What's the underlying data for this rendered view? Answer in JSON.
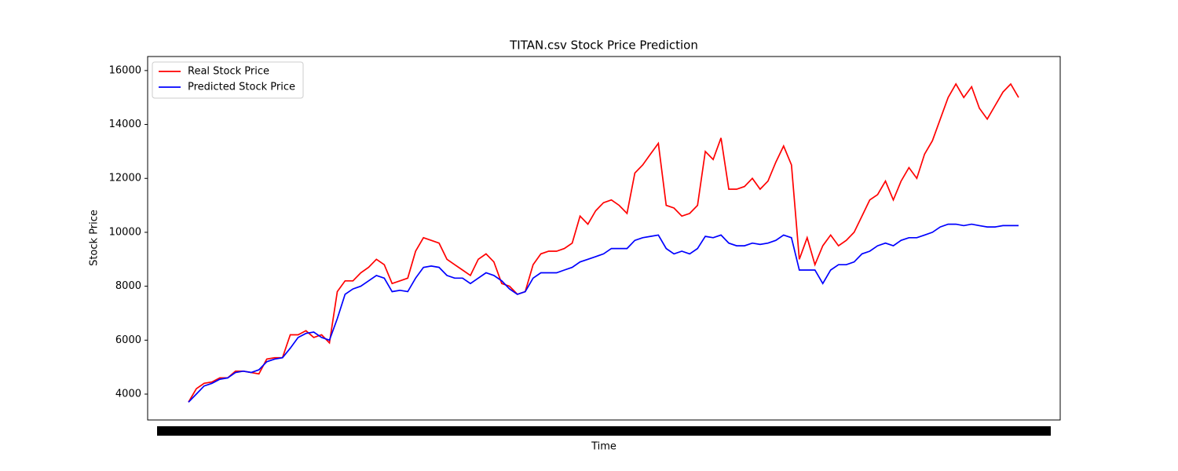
{
  "chart_data": {
    "type": "line",
    "title": "TITAN.csv Stock Price Prediction",
    "x_label": "Time",
    "y_label": "Stock Price",
    "ylim": [
      3040,
      16520
    ],
    "yticks": [
      4000,
      6000,
      8000,
      10000,
      12000,
      14000,
      16000
    ],
    "legend": "upper left",
    "series": [
      {
        "name": "Real Stock Price",
        "color": "#ff0000",
        "values": [
          3700,
          4200,
          4400,
          4450,
          4600,
          4600,
          4850,
          4850,
          4800,
          4750,
          5300,
          5350,
          5350,
          6200,
          6200,
          6350,
          6100,
          6200,
          5900,
          7800,
          8200,
          8200,
          8500,
          8700,
          9000,
          8800,
          8100,
          8200,
          8300,
          9300,
          9800,
          9700,
          9600,
          9000,
          8800,
          8600,
          8400,
          9000,
          9200,
          8900,
          8100,
          8000,
          7700,
          7800,
          8800,
          9200,
          9300,
          9300,
          9400,
          9600,
          10600,
          10300,
          10800,
          11100,
          11200,
          11000,
          10700,
          12200,
          12500,
          12900,
          13300,
          11000,
          10900,
          10600,
          10700,
          11000,
          13000,
          12700,
          13500,
          11600,
          11600,
          11700,
          12000,
          11600,
          11900,
          12600,
          13200,
          12500,
          9000,
          9800,
          8800,
          9500,
          9900,
          9500,
          9700,
          10000,
          10600,
          11200,
          11400,
          11900,
          11200,
          11900,
          12400,
          12000,
          12900,
          13400,
          14200,
          15000,
          15500,
          15000,
          15400,
          14600,
          14200,
          14700,
          15200,
          15500,
          15000
        ]
      },
      {
        "name": "Predicted Stock Price",
        "color": "#0000ff",
        "values": [
          3700,
          4000,
          4300,
          4400,
          4550,
          4600,
          4800,
          4850,
          4800,
          4900,
          5200,
          5300,
          5350,
          5700,
          6100,
          6250,
          6300,
          6100,
          6000,
          6800,
          7700,
          7900,
          8000,
          8200,
          8400,
          8300,
          7800,
          7850,
          7800,
          8300,
          8700,
          8750,
          8700,
          8400,
          8300,
          8300,
          8100,
          8300,
          8500,
          8400,
          8200,
          7900,
          7700,
          7800,
          8300,
          8500,
          8500,
          8500,
          8600,
          8700,
          8900,
          9000,
          9100,
          9200,
          9400,
          9400,
          9400,
          9700,
          9800,
          9850,
          9900,
          9400,
          9200,
          9300,
          9200,
          9400,
          9850,
          9800,
          9900,
          9600,
          9500,
          9500,
          9600,
          9550,
          9600,
          9700,
          9900,
          9800,
          8600,
          8600,
          8600,
          8100,
          8600,
          8800,
          8800,
          8900,
          9200,
          9300,
          9500,
          9600,
          9500,
          9700,
          9800,
          9800,
          9900,
          10000,
          10200,
          10300,
          10300,
          10250,
          10300,
          10250,
          10200,
          10200,
          10250,
          10250,
          10250
        ]
      }
    ]
  }
}
